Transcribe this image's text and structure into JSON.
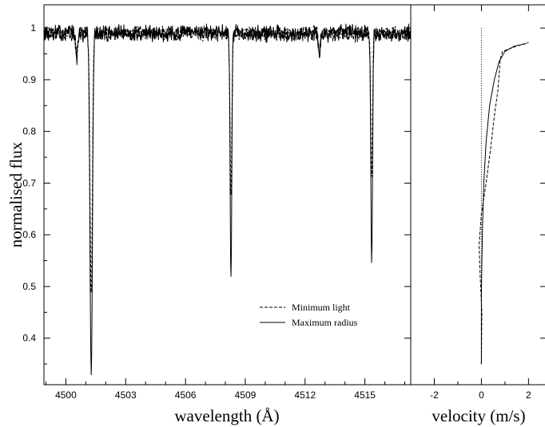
{
  "chart_data": [
    {
      "type": "line",
      "xlabel": "wavelength (Å)",
      "ylabel": "normalised flux",
      "xlim": [
        4498.9,
        4517.3
      ],
      "ylim": [
        0.31,
        1.045
      ],
      "xticks": [
        {
          "value": 4500,
          "label": "4500"
        },
        {
          "value": 4503,
          "label": "4503"
        },
        {
          "value": 4506,
          "label": "4506"
        },
        {
          "value": 4509,
          "label": "4509"
        },
        {
          "value": 4512,
          "label": "4512"
        },
        {
          "value": 4515,
          "label": "4515"
        }
      ],
      "yticks": [
        {
          "value": 0.4,
          "label": "0.4"
        },
        {
          "value": 0.5,
          "label": "0.5"
        },
        {
          "value": 0.6,
          "label": "0.6"
        },
        {
          "value": 0.7,
          "label": "0.7"
        },
        {
          "value": 0.8,
          "label": "0.8"
        },
        {
          "value": 0.9,
          "label": "0.9"
        },
        {
          "value": 1.0,
          "label": "1"
        }
      ],
      "continuum": 0.99,
      "lines": [
        {
          "center": 4500.55,
          "depth_min": 0.04,
          "depth_max": 0.05,
          "width": 0.07
        },
        {
          "center": 4501.27,
          "depth_min": 0.51,
          "depth_max": 0.66,
          "width": 0.085
        },
        {
          "center": 4508.28,
          "depth_min": 0.32,
          "depth_max": 0.485,
          "width": 0.06
        },
        {
          "center": 4512.72,
          "depth_min": 0.04,
          "depth_max": 0.05,
          "width": 0.06
        },
        {
          "center": 4515.34,
          "depth_min": 0.28,
          "depth_max": 0.455,
          "width": 0.06
        }
      ],
      "series": [
        {
          "name": "Minimum light",
          "style": "dashed",
          "color": "#000000"
        },
        {
          "name": "Maximum radius",
          "style": "solid",
          "color": "#000000"
        }
      ],
      "legend": {
        "position": "bottom-right"
      }
    },
    {
      "type": "line",
      "xlabel": "velocity (m/s)",
      "xlim": [
        -3.0,
        2.7
      ],
      "ylim": [
        0.31,
        1.045
      ],
      "xticks": [
        {
          "value": -2,
          "label": "-2"
        },
        {
          "value": 0,
          "label": "0"
        },
        {
          "value": 2,
          "label": "2"
        }
      ],
      "reference_line": {
        "x": 0,
        "y_from": 0.35,
        "y_to": 1.0,
        "style": "dotted"
      },
      "series": [
        {
          "name": "Minimum light",
          "style": "dashed",
          "points": [
            [
              0.0,
              0.35
            ],
            [
              0.02,
              0.45
            ],
            [
              -0.05,
              0.52
            ],
            [
              -0.1,
              0.58
            ],
            [
              0.0,
              0.64
            ],
            [
              0.2,
              0.7
            ],
            [
              0.4,
              0.77
            ],
            [
              0.55,
              0.83
            ],
            [
              0.7,
              0.88
            ],
            [
              0.8,
              0.94
            ],
            [
              0.9,
              0.955
            ],
            [
              1.5,
              0.965
            ],
            [
              2.0,
              0.972
            ]
          ]
        },
        {
          "name": "Maximum radius",
          "style": "solid",
          "points": [
            [
              0.0,
              0.35
            ],
            [
              0.0,
              0.48
            ],
            [
              0.02,
              0.55
            ],
            [
              0.05,
              0.62
            ],
            [
              0.1,
              0.7
            ],
            [
              0.2,
              0.78
            ],
            [
              0.35,
              0.85
            ],
            [
              0.55,
              0.9
            ],
            [
              0.75,
              0.935
            ],
            [
              1.0,
              0.955
            ],
            [
              1.4,
              0.965
            ],
            [
              1.9,
              0.97
            ]
          ]
        }
      ]
    }
  ]
}
